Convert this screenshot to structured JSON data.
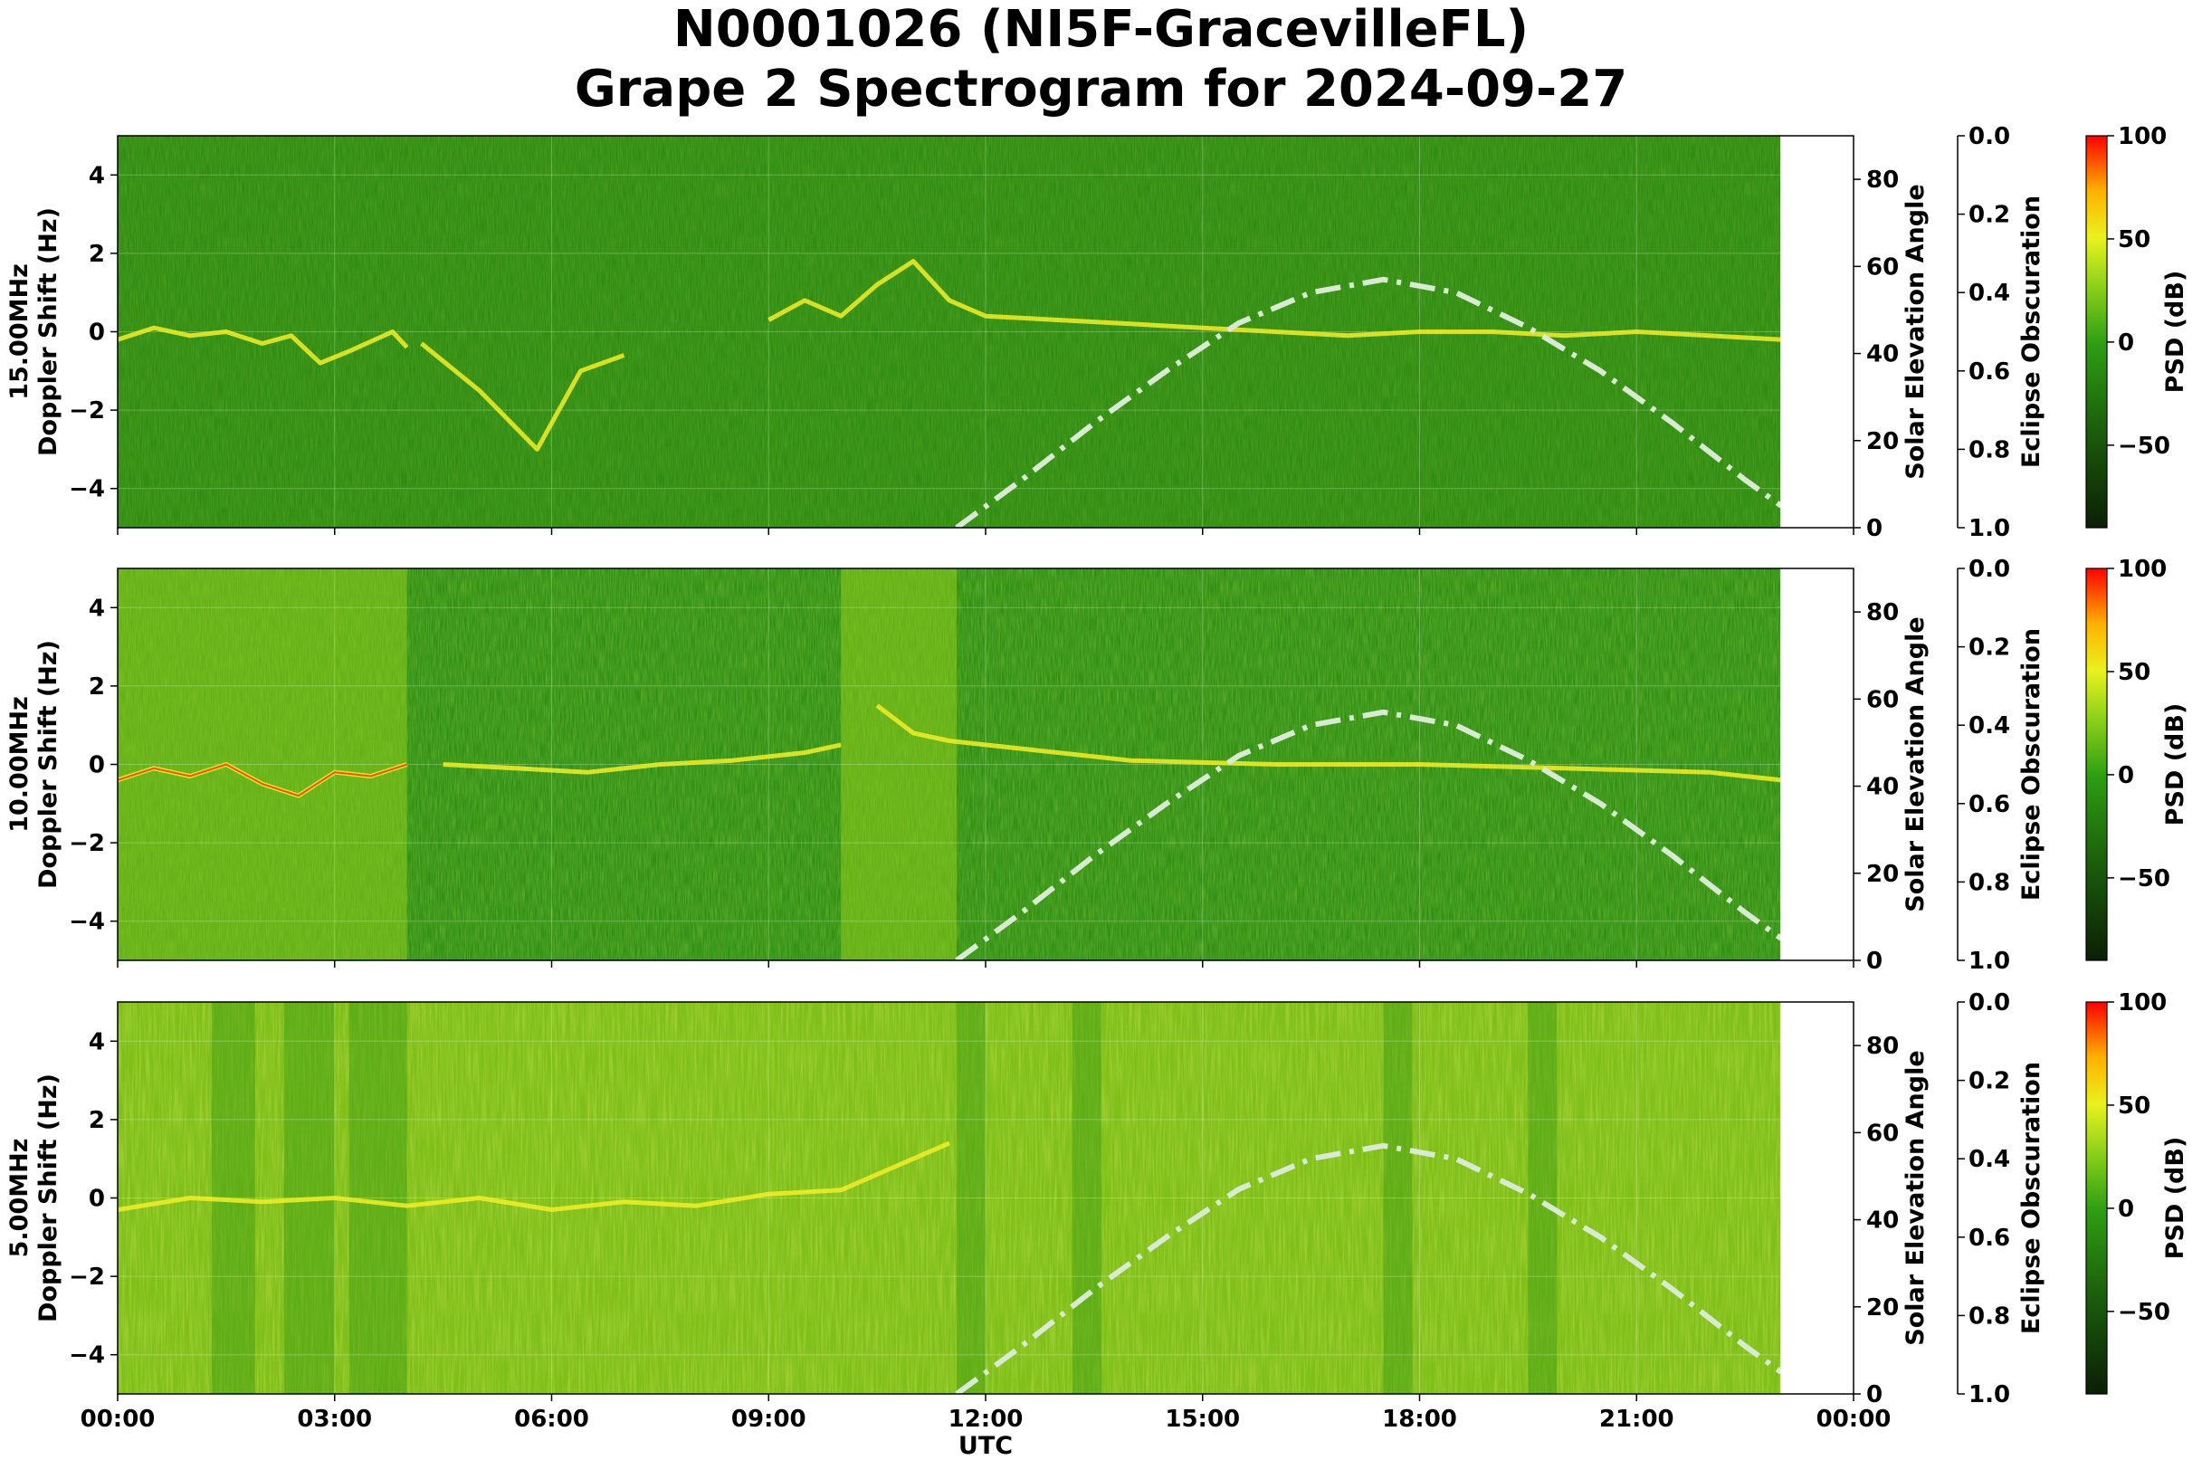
{
  "title": {
    "line1": "N0001026 (NI5F-GracevilleFL)",
    "line2": "Grape 2 Spectrogram for 2024-09-27"
  },
  "colors": {
    "spectrogram_base": "#2f8c12",
    "trace_bright": "#f2ee2a",
    "trace_hot": "#ff2a00",
    "solar_curve": "#d9ead3",
    "colormap": [
      "#0b1f05",
      "#1b5e0b",
      "#2e9e12",
      "#8fd21a",
      "#e9f21e",
      "#ffb000",
      "#ff0000"
    ]
  },
  "chart_data": {
    "type": "heatmap",
    "shared": {
      "xlabel": "UTC",
      "x_ticks": [
        "00:00",
        "03:00",
        "06:00",
        "09:00",
        "12:00",
        "15:00",
        "18:00",
        "21:00",
        "00:00"
      ],
      "x_range_hours": [
        0,
        24
      ],
      "data_end_hour": 23.0,
      "y_ticks": [
        "4",
        "2",
        "0",
        "−2",
        "−4"
      ],
      "y_range_hz": [
        -5,
        5
      ],
      "right_axis_label": "Solar Elevation Angle",
      "right_ticks": [
        "80",
        "60",
        "40",
        "20",
        "0"
      ],
      "right_range_deg": [
        0,
        90
      ],
      "eclipse_label": "Eclipse Obscuration",
      "eclipse_ticks": [
        "0.0",
        "0.2",
        "0.4",
        "0.6",
        "0.8",
        "1.0"
      ],
      "colorbar_label": "PSD (dB)",
      "colorbar_ticks": [
        "100",
        "50",
        "0",
        "−50"
      ],
      "colorbar_range_db": [
        -90,
        100
      ],
      "grid": true,
      "solar_elevation_curve": {
        "style": "dash-dot",
        "x_hours": [
          11.6,
          12.5,
          13.5,
          14.5,
          15.5,
          16.5,
          17.5,
          18.5,
          19.5,
          20.5,
          21.5,
          22.5,
          23.0
        ],
        "elevation_deg": [
          0,
          11,
          24,
          36,
          47,
          54,
          57,
          54,
          46,
          36,
          24,
          11,
          5
        ]
      }
    },
    "panels": [
      {
        "frequency_label": "15.00MHz",
        "ylabel": "Doppler Shift (Hz)",
        "traces": [
          {
            "x_hours": [
              0,
              0.5,
              1.0,
              1.5,
              2.0,
              2.4,
              2.8,
              3.2,
              3.8,
              4.0
            ],
            "doppler_hz": [
              -0.2,
              0.1,
              -0.1,
              0.0,
              -0.3,
              -0.1,
              -0.8,
              -0.5,
              0.0,
              -0.4
            ]
          },
          {
            "x_hours": [
              4.2,
              5.0,
              5.8,
              6.4,
              7.0
            ],
            "doppler_hz": [
              -0.3,
              -1.5,
              -3.0,
              -1.0,
              -0.6
            ]
          },
          {
            "x_hours": [
              9.0,
              9.5,
              10.0,
              10.5,
              11.0,
              11.5,
              12.0,
              13.0,
              14.0,
              15.0,
              16.0,
              17.0,
              18.0,
              19.0,
              20.0,
              21.0,
              22.0,
              23.0
            ],
            "doppler_hz": [
              0.3,
              0.8,
              0.4,
              1.2,
              1.8,
              0.8,
              0.4,
              0.3,
              0.2,
              0.1,
              0.0,
              -0.1,
              0.0,
              0.0,
              -0.1,
              0.0,
              -0.1,
              -0.2
            ]
          }
        ]
      },
      {
        "frequency_label": "10.00MHz",
        "ylabel": "Doppler Shift (Hz)",
        "traces": [
          {
            "x_hours": [
              0,
              0.5,
              1.0,
              1.5,
              2.0,
              2.5,
              3.0,
              3.5,
              4.0
            ],
            "doppler_hz": [
              -0.4,
              -0.1,
              -0.3,
              0.0,
              -0.5,
              -0.8,
              -0.2,
              -0.3,
              0.0
            ]
          },
          {
            "x_hours": [
              4.5,
              5.5,
              6.5,
              7.5,
              8.5,
              9.5,
              10.0
            ],
            "doppler_hz": [
              0.0,
              -0.1,
              -0.2,
              0.0,
              0.1,
              0.3,
              0.5
            ]
          },
          {
            "x_hours": [
              10.5,
              11.0,
              11.5,
              12.0,
              13.0,
              14.0,
              16.0,
              18.0,
              20.0,
              22.0,
              23.0
            ],
            "doppler_hz": [
              1.5,
              0.8,
              0.6,
              0.5,
              0.3,
              0.1,
              0.0,
              0.0,
              -0.1,
              -0.2,
              -0.4
            ]
          }
        ]
      },
      {
        "frequency_label": "5.00MHz",
        "ylabel": "Doppler Shift (Hz)",
        "traces": [
          {
            "x_hours": [
              0,
              1.0,
              2.0,
              3.0,
              4.0,
              5.0,
              6.0,
              7.0,
              8.0,
              9.0,
              10.0,
              10.5,
              11.0,
              11.5
            ],
            "doppler_hz": [
              -0.3,
              0.0,
              -0.1,
              0.0,
              -0.2,
              0.0,
              -0.3,
              -0.1,
              -0.2,
              0.1,
              0.2,
              0.6,
              1.0,
              1.4
            ]
          }
        ]
      }
    ]
  }
}
